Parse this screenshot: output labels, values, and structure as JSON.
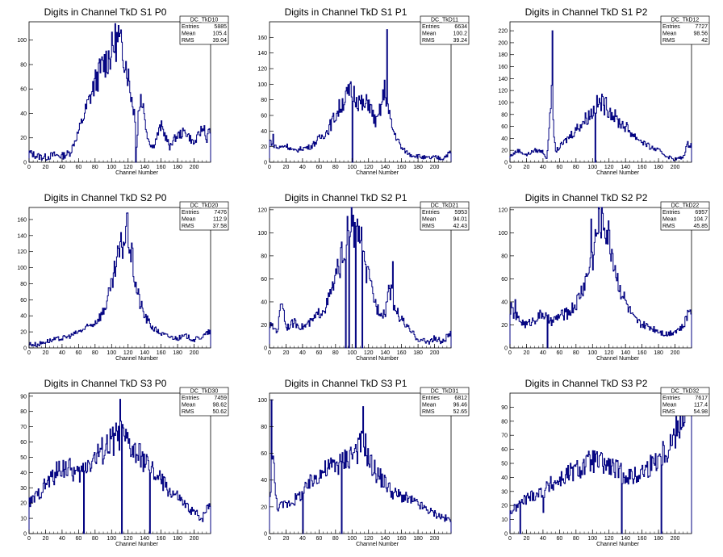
{
  "colors": {
    "histogram": "#000080",
    "frame": "#000000",
    "background": "#ffffff"
  },
  "stats_labels": {
    "entries": "Entries",
    "mean": "Mean",
    "rms": "RMS"
  },
  "chart_data": [
    {
      "type": "histogram",
      "title": "Digits in Channel TkD S1 P0",
      "xlabel": "Channel Number",
      "xlim": [
        0,
        220
      ],
      "ylim": [
        0,
        115
      ],
      "xticks": [
        0,
        20,
        40,
        60,
        80,
        100,
        120,
        140,
        160,
        180,
        200
      ],
      "yticks": [
        0,
        20,
        40,
        60,
        80,
        100
      ],
      "stats": {
        "name": "DC_TkD10",
        "entries": "5885",
        "mean": "105.4",
        "rms": "39.04"
      },
      "x": [
        0,
        10,
        20,
        30,
        40,
        50,
        60,
        70,
        80,
        90,
        100,
        105,
        110,
        115,
        120,
        125,
        128,
        130,
        135,
        140,
        145,
        150,
        160,
        170,
        180,
        190,
        200,
        210,
        215,
        218
      ],
      "y": [
        8,
        5,
        4,
        6,
        5,
        8,
        25,
        45,
        65,
        80,
        90,
        100,
        95,
        90,
        72,
        50,
        40,
        10,
        55,
        35,
        18,
        12,
        30,
        14,
        22,
        25,
        15,
        28,
        18,
        25
      ],
      "spikes": [
        [
          108,
          112
        ],
        [
          129,
          0
        ],
        [
          132,
          42
        ],
        [
          138,
          48
        ],
        [
          170,
          10
        ],
        [
          212,
          30
        ]
      ]
    },
    {
      "type": "histogram",
      "title": "Digits in Channel TkD S1 P1",
      "xlabel": "Channel Number",
      "xlim": [
        0,
        220
      ],
      "ylim": [
        0,
        180
      ],
      "xticks": [
        0,
        20,
        40,
        60,
        80,
        100,
        120,
        140,
        160,
        180,
        200
      ],
      "yticks": [
        0,
        20,
        40,
        60,
        80,
        100,
        120,
        140,
        160
      ],
      "stats": {
        "name": "DC_TkD11",
        "entries": "6634",
        "mean": "100.2",
        "rms": "39.24"
      },
      "x": [
        0,
        10,
        20,
        30,
        40,
        50,
        60,
        70,
        80,
        90,
        100,
        110,
        115,
        120,
        125,
        130,
        135,
        140,
        145,
        150,
        155,
        160,
        170,
        180,
        190,
        200,
        210,
        218
      ],
      "y": [
        28,
        18,
        22,
        14,
        18,
        20,
        30,
        40,
        60,
        80,
        92,
        76,
        70,
        80,
        60,
        50,
        70,
        95,
        60,
        40,
        30,
        18,
        10,
        8,
        5,
        6,
        5,
        12
      ],
      "spikes": [
        [
          142,
          170
        ],
        [
          4,
          36
        ],
        [
          100,
          0
        ]
      ]
    },
    {
      "type": "histogram",
      "title": "Digits in Channel TkD S1 P2",
      "xlabel": "Channel Number",
      "xlim": [
        0,
        220
      ],
      "ylim": [
        0,
        235
      ],
      "xticks": [
        0,
        20,
        40,
        60,
        80,
        100,
        120,
        140,
        160,
        180,
        200
      ],
      "yticks": [
        0,
        20,
        40,
        60,
        80,
        100,
        120,
        140,
        160,
        180,
        200,
        220
      ],
      "stats": {
        "name": "DC_TkD12",
        "entries": "7727",
        "mean": "98.56",
        "rms": "42"
      },
      "x": [
        0,
        10,
        20,
        30,
        40,
        45,
        50,
        55,
        60,
        70,
        80,
        90,
        100,
        105,
        110,
        120,
        125,
        130,
        140,
        150,
        160,
        170,
        180,
        190,
        200,
        210,
        215
      ],
      "y": [
        10,
        20,
        12,
        20,
        18,
        5,
        120,
        18,
        25,
        40,
        55,
        70,
        85,
        95,
        100,
        90,
        80,
        70,
        60,
        45,
        35,
        25,
        20,
        10,
        5,
        8,
        30
      ],
      "spikes": [
        [
          51,
          220
        ],
        [
          103,
          0
        ],
        [
          140,
          60
        ]
      ]
    },
    {
      "type": "histogram",
      "title": "Digits in Channel TkD S2 P0",
      "xlabel": "Channel Number",
      "xlim": [
        0,
        220
      ],
      "ylim": [
        0,
        175
      ],
      "xticks": [
        0,
        20,
        40,
        60,
        80,
        100,
        120,
        140,
        160,
        180,
        200
      ],
      "yticks": [
        0,
        20,
        40,
        60,
        80,
        100,
        120,
        140,
        160
      ],
      "stats": {
        "name": "DC_TkD20",
        "entries": "7476",
        "mean": "112.9",
        "rms": "37.58"
      },
      "x": [
        0,
        10,
        20,
        30,
        40,
        50,
        60,
        70,
        80,
        90,
        100,
        105,
        110,
        115,
        120,
        125,
        130,
        135,
        140,
        150,
        160,
        170,
        180,
        190,
        200,
        210,
        218
      ],
      "y": [
        5,
        4,
        8,
        10,
        12,
        15,
        20,
        25,
        32,
        45,
        75,
        100,
        120,
        135,
        145,
        110,
        75,
        55,
        40,
        25,
        18,
        14,
        12,
        15,
        10,
        14,
        20
      ],
      "spikes": [
        [
          118,
          168
        ]
      ]
    },
    {
      "type": "histogram",
      "title": "Digits in Channel TkD S2 P1",
      "xlabel": "Channel Number",
      "xlim": [
        0,
        220
      ],
      "ylim": [
        0,
        122
      ],
      "xticks": [
        0,
        20,
        40,
        60,
        80,
        100,
        120,
        140,
        160,
        180,
        200
      ],
      "yticks": [
        0,
        20,
        40,
        60,
        80,
        100,
        120
      ],
      "stats": {
        "name": "DC_TkD21",
        "entries": "5953",
        "mean": "94.01",
        "rms": "42.43"
      },
      "x": [
        0,
        10,
        15,
        20,
        30,
        40,
        50,
        60,
        70,
        80,
        90,
        95,
        100,
        105,
        110,
        115,
        120,
        125,
        130,
        140,
        145,
        150,
        155,
        160,
        170,
        180,
        190,
        200,
        210,
        218
      ],
      "y": [
        20,
        15,
        45,
        18,
        22,
        18,
        22,
        30,
        38,
        60,
        85,
        100,
        110,
        90,
        100,
        70,
        60,
        48,
        35,
        30,
        55,
        40,
        30,
        25,
        15,
        8,
        5,
        8,
        5,
        12
      ],
      "spikes": [
        [
          92,
          0
        ],
        [
          96,
          0
        ],
        [
          104,
          0
        ],
        [
          106,
          112
        ],
        [
          112,
          0
        ],
        [
          149,
          75
        ]
      ]
    },
    {
      "type": "histogram",
      "title": "Digits in Channel TkD S2 P2",
      "xlabel": "Channel Number",
      "xlim": [
        0,
        220
      ],
      "ylim": [
        0,
        122
      ],
      "xticks": [
        0,
        20,
        40,
        60,
        80,
        100,
        120,
        140,
        160,
        180,
        200
      ],
      "yticks": [
        0,
        20,
        40,
        60,
        80,
        100,
        120
      ],
      "stats": {
        "name": "DC_TkD22",
        "entries": "6957",
        "mean": "104.7",
        "rms": "45.85"
      },
      "x": [
        0,
        10,
        20,
        30,
        40,
        50,
        60,
        70,
        80,
        90,
        100,
        105,
        110,
        115,
        120,
        125,
        130,
        140,
        150,
        160,
        170,
        180,
        190,
        200,
        210,
        218
      ],
      "y": [
        35,
        25,
        20,
        25,
        30,
        22,
        28,
        30,
        38,
        55,
        78,
        100,
        115,
        108,
        95,
        80,
        60,
        40,
        25,
        20,
        18,
        15,
        12,
        15,
        18,
        35
      ],
      "spikes": [
        [
          6,
          42
        ],
        [
          45,
          0
        ],
        [
          98,
          112
        ]
      ]
    },
    {
      "type": "histogram",
      "title": "Digits in Channel TkD S3 P0",
      "xlabel": "Channel Number",
      "xlim": [
        0,
        220
      ],
      "ylim": [
        0,
        92
      ],
      "xticks": [
        0,
        20,
        40,
        60,
        80,
        100,
        120,
        140,
        160,
        180,
        200
      ],
      "yticks": [
        0,
        10,
        20,
        30,
        40,
        50,
        60,
        70,
        80,
        90
      ],
      "stats": {
        "name": "DC_TkD30",
        "entries": "7459",
        "mean": "98.62",
        "rms": "50.62"
      },
      "x": [
        0,
        10,
        20,
        30,
        40,
        50,
        60,
        70,
        80,
        90,
        100,
        110,
        120,
        130,
        140,
        150,
        160,
        170,
        180,
        190,
        200,
        210,
        218
      ],
      "y": [
        20,
        25,
        32,
        38,
        44,
        42,
        38,
        46,
        50,
        55,
        60,
        65,
        58,
        52,
        48,
        40,
        35,
        28,
        24,
        18,
        14,
        10,
        20
      ],
      "spikes": [
        [
          66,
          0
        ],
        [
          110,
          88
        ],
        [
          112,
          0
        ],
        [
          146,
          0
        ],
        [
          3,
          20
        ]
      ]
    },
    {
      "type": "histogram",
      "title": "Digits in Channel TkD S3 P1",
      "xlabel": "Channel Number",
      "xlim": [
        0,
        220
      ],
      "ylim": [
        0,
        105
      ],
      "xticks": [
        0,
        20,
        40,
        60,
        80,
        100,
        120,
        140,
        160,
        180,
        200
      ],
      "yticks": [
        0,
        20,
        40,
        60,
        80,
        100
      ],
      "stats": {
        "name": "DC_TkD31",
        "entries": "6812",
        "mean": "96.46",
        "rms": "52.65"
      },
      "x": [
        0,
        4,
        8,
        10,
        20,
        30,
        40,
        50,
        60,
        70,
        80,
        90,
        100,
        110,
        115,
        120,
        130,
        140,
        150,
        160,
        170,
        180,
        190,
        200,
        210,
        218
      ],
      "y": [
        20,
        60,
        25,
        20,
        22,
        25,
        30,
        38,
        45,
        48,
        52,
        55,
        60,
        65,
        70,
        55,
        45,
        38,
        30,
        28,
        25,
        22,
        18,
        15,
        12,
        10
      ],
      "spikes": [
        [
          2,
          100
        ],
        [
          40,
          0
        ],
        [
          87,
          0
        ],
        [
          113,
          95
        ]
      ]
    },
    {
      "type": "histogram",
      "title": "Digits in Channel TkD S3 P2",
      "xlabel": "Channel Number",
      "xlim": [
        0,
        220
      ],
      "ylim": [
        0,
        100
      ],
      "xticks": [
        0,
        20,
        40,
        60,
        80,
        100,
        120,
        140,
        160,
        180,
        200
      ],
      "yticks": [
        0,
        10,
        20,
        30,
        40,
        50,
        60,
        70,
        80,
        90
      ],
      "stats": {
        "name": "DC_TkD32",
        "entries": "7617",
        "mean": "117.4",
        "rms": "54.98"
      },
      "x": [
        0,
        10,
        20,
        30,
        40,
        50,
        60,
        70,
        80,
        90,
        100,
        110,
        120,
        130,
        140,
        150,
        160,
        170,
        180,
        190,
        200,
        205,
        210,
        214
      ],
      "y": [
        15,
        20,
        25,
        28,
        30,
        35,
        38,
        42,
        45,
        48,
        52,
        50,
        48,
        45,
        42,
        40,
        44,
        48,
        55,
        60,
        70,
        80,
        85,
        90
      ],
      "spikes": [
        [
          12,
          0
        ],
        [
          135,
          0
        ],
        [
          183,
          0
        ],
        [
          214,
          85
        ],
        [
          40,
          15
        ]
      ]
    }
  ]
}
